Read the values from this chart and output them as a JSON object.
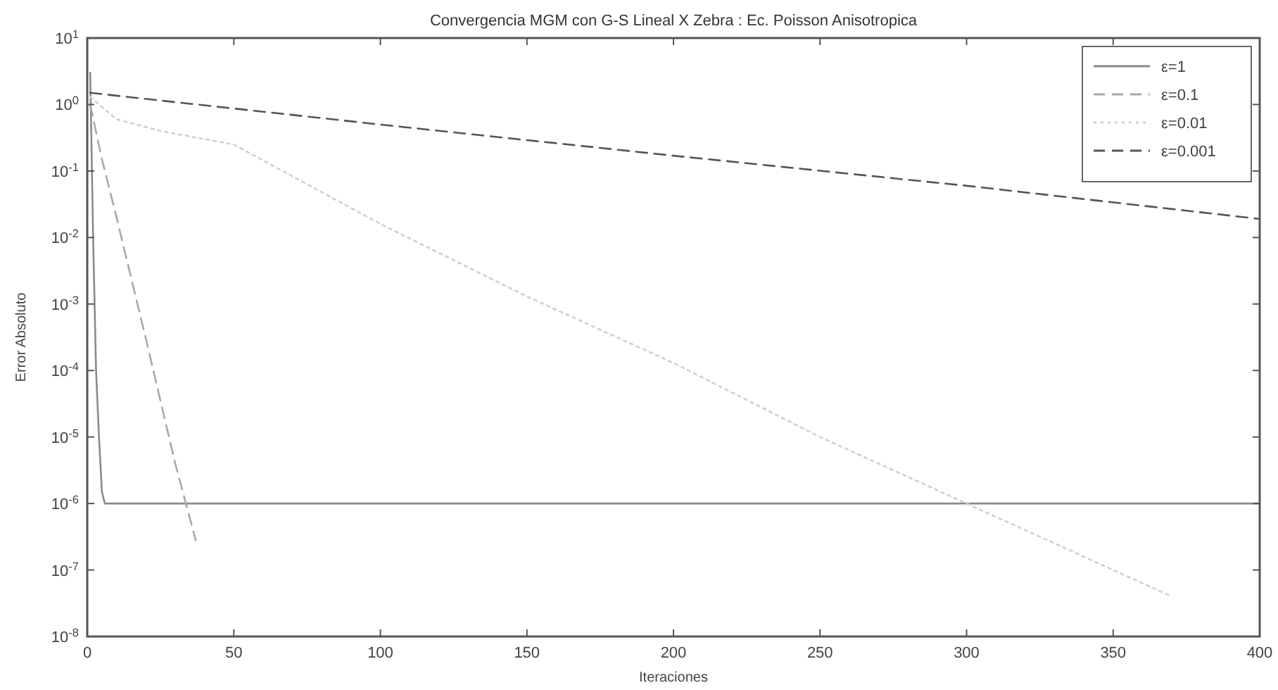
{
  "chart_data": {
    "type": "line",
    "title": "Convergencia MGM con  G-S Lineal X Zebra : Ec. Poisson Anisotropica",
    "xlabel": "Iteraciones",
    "ylabel": "Error Absoluto",
    "log": "y",
    "grid": false,
    "legend": "top right",
    "xlim": [
      0,
      400
    ],
    "xticks": [
      0,
      50,
      100,
      150,
      200,
      250,
      300,
      350,
      400
    ],
    "ylim": [
      1e-08,
      10
    ],
    "yticks": [
      {
        "value": 1e-08,
        "label": "10$^{-8}$"
      },
      {
        "value": 1e-07,
        "label": "10$^{-7}$"
      },
      {
        "value": 1e-06,
        "label": "10$^{-6}$"
      },
      {
        "value": 1e-05,
        "label": "10$^{-5}$"
      },
      {
        "value": 0.0001,
        "label": "10$^{-4}$"
      },
      {
        "value": 0.001,
        "label": "10$^{-3}$"
      },
      {
        "value": 0.01,
        "label": "10$^{-2}$"
      },
      {
        "value": 0.1,
        "label": "10$^{-1}$"
      },
      {
        "value": 1,
        "label": "10$^{0}$"
      },
      {
        "value": 10,
        "label": "10$^{1}$"
      }
    ],
    "series": [
      {
        "name": "ε=1",
        "color": "#8a8a8a",
        "line_style": "solid",
        "x": [
          1,
          2,
          3,
          4,
          5,
          6,
          10,
          400
        ],
        "values": [
          3,
          0.01,
          0.0001,
          1e-05,
          1.5e-06,
          1e-06,
          1e-06,
          1e-06
        ]
      },
      {
        "name": "ε=0.1",
        "color": "#a8a8a8",
        "line_style": "dashed",
        "x": [
          1,
          5,
          10,
          20,
          30,
          37
        ],
        "values": [
          1,
          0.15,
          0.02,
          0.0003,
          4e-06,
          2.8e-07
        ]
      },
      {
        "name": "ε=0.01",
        "color": "#d0d0d0",
        "line_style": "dotted",
        "x": [
          1,
          10,
          25,
          50,
          100,
          150,
          200,
          250,
          300,
          350,
          370
        ],
        "values": [
          1.3,
          0.6,
          0.4,
          0.25,
          0.016,
          0.0013,
          0.00013,
          1e-05,
          1e-06,
          1e-07,
          4e-08
        ]
      },
      {
        "name": "ε=0.001",
        "color": "#555555",
        "line_style": "dashed",
        "x": [
          1,
          100,
          200,
          300,
          400
        ],
        "values": [
          1.5,
          0.5,
          0.17,
          0.06,
          0.019
        ]
      }
    ]
  }
}
